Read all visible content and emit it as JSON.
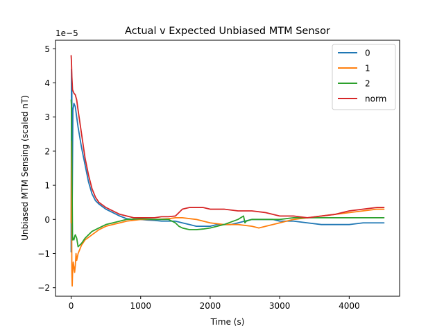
{
  "chart_data": {
    "type": "line",
    "title": "Actual v Expected Unbiased MTM Sensor",
    "xlabel": "Time (s)",
    "ylabel": "Unbiased MTM Sensing (scaled nT)",
    "y_offset_label": "1e−5",
    "xlim": [
      -225,
      4725
    ],
    "ylim": [
      -2.25,
      5.25
    ],
    "xticks": [
      0,
      1000,
      2000,
      3000,
      4000
    ],
    "xtick_labels": [
      "0",
      "1000",
      "2000",
      "3000",
      "4000"
    ],
    "yticks": [
      -2,
      -1,
      0,
      1,
      2,
      3,
      4,
      5
    ],
    "ytick_labels": [
      "−2",
      "−1",
      "0",
      "1",
      "2",
      "3",
      "4",
      "5"
    ],
    "grid": false,
    "legend_position": "top-right",
    "series": [
      {
        "name": "0",
        "color": "#1f77b4",
        "x": [
          0,
          5,
          10,
          15,
          25,
          40,
          60,
          80,
          100,
          150,
          200,
          250,
          300,
          350,
          400,
          500,
          600,
          700,
          800,
          900,
          1000,
          1100,
          1200,
          1300,
          1400,
          1500,
          1600,
          1700,
          1800,
          1900,
          2000,
          2100,
          2200,
          2300,
          2400,
          2500,
          2600,
          2700,
          2800,
          2900,
          3000,
          3200,
          3400,
          3600,
          3800,
          4000,
          4200,
          4400,
          4500
        ],
        "y": [
          -0.95,
          4.4,
          4.0,
          0.3,
          3.2,
          3.4,
          3.3,
          3.0,
          2.7,
          2.1,
          1.6,
          1.1,
          0.75,
          0.55,
          0.45,
          0.3,
          0.2,
          0.1,
          0.02,
          0.0,
          0.0,
          -0.02,
          -0.03,
          -0.05,
          -0.05,
          -0.05,
          -0.1,
          -0.15,
          -0.2,
          -0.2,
          -0.2,
          -0.15,
          -0.15,
          -0.15,
          -0.1,
          -0.05,
          0.0,
          0.0,
          0.0,
          0.0,
          -0.05,
          -0.05,
          -0.1,
          -0.15,
          -0.15,
          -0.15,
          -0.1,
          -0.1,
          -0.1
        ]
      },
      {
        "name": "1",
        "color": "#ff7f0e",
        "x": [
          0,
          5,
          10,
          15,
          20,
          30,
          40,
          50,
          60,
          70,
          80,
          100,
          150,
          200,
          300,
          400,
          500,
          600,
          700,
          800,
          1000,
          1200,
          1400,
          1500,
          1600,
          1800,
          2000,
          2200,
          2400,
          2600,
          2700,
          2800,
          3000,
          3200,
          3400,
          3600,
          3800,
          4000,
          4200,
          4400,
          4500
        ],
        "y": [
          -0.1,
          2.3,
          -1.5,
          -1.95,
          -1.6,
          -1.25,
          -1.4,
          -1.55,
          -1.35,
          -1.0,
          -1.2,
          -1.0,
          -0.75,
          -0.6,
          -0.45,
          -0.3,
          -0.2,
          -0.15,
          -0.1,
          -0.05,
          0.0,
          0.0,
          0.02,
          0.05,
          0.05,
          0.0,
          -0.1,
          -0.15,
          -0.15,
          -0.2,
          -0.25,
          -0.2,
          -0.1,
          0.0,
          0.05,
          0.1,
          0.15,
          0.2,
          0.25,
          0.3,
          0.3
        ]
      },
      {
        "name": "2",
        "color": "#2ca02c",
        "x": [
          0,
          5,
          10,
          20,
          30,
          40,
          50,
          60,
          80,
          100,
          150,
          200,
          250,
          300,
          400,
          500,
          600,
          700,
          800,
          1000,
          1200,
          1400,
          1500,
          1550,
          1600,
          1700,
          1800,
          1900,
          2000,
          2200,
          2400,
          2480,
          2500,
          2520,
          2600,
          2800,
          3000,
          3200,
          3500,
          3800,
          4000,
          4200,
          4400,
          4500
        ],
        "y": [
          3.5,
          3.3,
          2.0,
          -0.6,
          -0.55,
          -0.6,
          -0.5,
          -0.45,
          -0.55,
          -0.8,
          -0.7,
          -0.55,
          -0.45,
          -0.35,
          -0.25,
          -0.15,
          -0.1,
          -0.05,
          0.0,
          0.02,
          0.0,
          0.0,
          -0.1,
          -0.2,
          -0.25,
          -0.3,
          -0.3,
          -0.28,
          -0.25,
          -0.15,
          0.0,
          0.1,
          -0.1,
          -0.05,
          0.0,
          0.0,
          0.0,
          0.05,
          0.05,
          0.05,
          0.05,
          0.05,
          0.05,
          0.05
        ]
      },
      {
        "name": "norm",
        "color": "#d62728",
        "x": [
          0,
          5,
          10,
          15,
          20,
          30,
          40,
          60,
          80,
          100,
          150,
          200,
          250,
          300,
          350,
          400,
          500,
          600,
          700,
          800,
          900,
          1000,
          1100,
          1200,
          1300,
          1400,
          1500,
          1550,
          1600,
          1700,
          1800,
          1900,
          2000,
          2200,
          2400,
          2600,
          2800,
          3000,
          3200,
          3400,
          3600,
          3800,
          4000,
          4200,
          4400,
          4500
        ],
        "y": [
          4.8,
          4.6,
          4.2,
          4.0,
          3.8,
          3.75,
          3.7,
          3.65,
          3.5,
          3.2,
          2.5,
          1.8,
          1.3,
          0.9,
          0.65,
          0.5,
          0.35,
          0.25,
          0.15,
          0.1,
          0.05,
          0.05,
          0.05,
          0.05,
          0.08,
          0.08,
          0.1,
          0.2,
          0.3,
          0.35,
          0.35,
          0.35,
          0.3,
          0.3,
          0.25,
          0.25,
          0.2,
          0.1,
          0.1,
          0.05,
          0.1,
          0.15,
          0.25,
          0.3,
          0.35,
          0.35
        ]
      }
    ]
  }
}
